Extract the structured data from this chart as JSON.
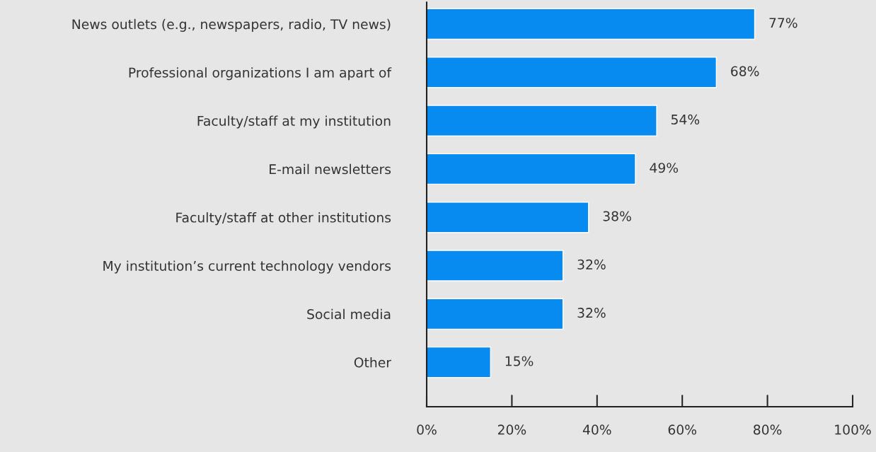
{
  "chart_data": {
    "type": "bar",
    "orientation": "horizontal",
    "categories": [
      "News outlets (e.g., newspapers, radio, TV news)",
      "Professional organizations I am apart of",
      "Faculty/staff at my institution",
      "E-mail newsletters",
      "Faculty/staff at other institutions",
      "My institution’s current technology vendors",
      "Social media",
      "Other"
    ],
    "values": [
      77,
      68,
      54,
      49,
      38,
      32,
      32,
      15
    ],
    "value_labels": [
      "77%",
      "68%",
      "54%",
      "49%",
      "38%",
      "32%",
      "32%",
      "15%"
    ],
    "color": "#078bf0",
    "xlim": [
      0,
      100
    ],
    "xticks": [
      {
        "value": 0,
        "label": "0%"
      },
      {
        "value": 20,
        "label": "20%"
      },
      {
        "value": 40,
        "label": "40%"
      },
      {
        "value": 60,
        "label": "60%"
      },
      {
        "value": 80,
        "label": "80%"
      },
      {
        "value": 100,
        "label": "100%"
      }
    ],
    "grid": false
  }
}
